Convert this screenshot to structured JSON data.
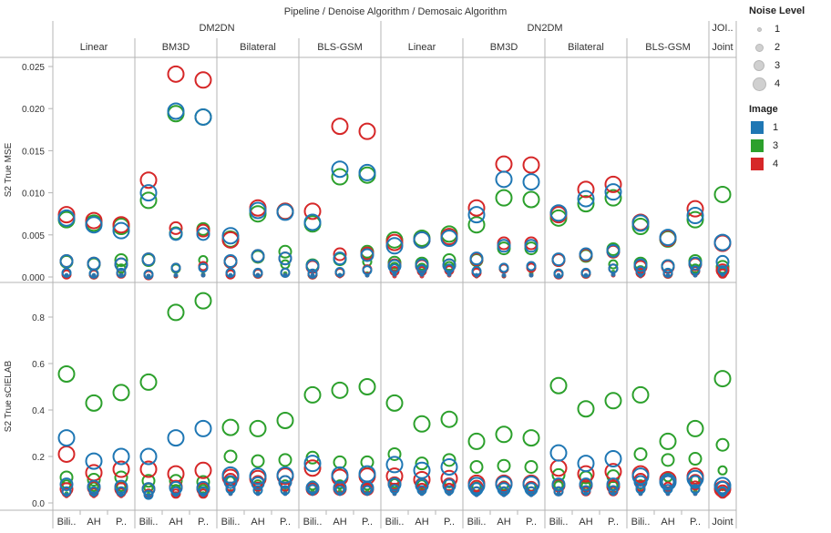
{
  "chart_data": {
    "type": "scatter",
    "title": "Pipeline / Denoise Algorithm / Demosaic Algorithm",
    "pipelines": [
      {
        "name": "DM2DN",
        "denoise": [
          "Linear",
          "BM3D",
          "Bilateral",
          "BLS-GSM"
        ]
      },
      {
        "name": "DN2DM",
        "denoise": [
          "Linear",
          "BM3D",
          "Bilateral",
          "BLS-GSM"
        ]
      },
      {
        "name": "JOI..",
        "denoise": [
          "Joint"
        ]
      }
    ],
    "demosaic_labels": [
      "Bili..",
      "AH",
      "P.."
    ],
    "joint_label": "Joint",
    "rows": [
      {
        "ylabel": "S2 True MSE",
        "ylim": [
          0,
          0.026
        ],
        "ticks": [
          "0.000",
          "0.005",
          "0.010",
          "0.015",
          "0.020",
          "0.025"
        ],
        "tick_values": [
          0,
          0.005,
          0.01,
          0.015,
          0.02,
          0.025
        ]
      },
      {
        "ylabel": "S2 True sCIELAB",
        "ylim": [
          0,
          0.92
        ],
        "ticks": [
          "0.0",
          "0.2",
          "0.4",
          "0.6",
          "0.8"
        ],
        "tick_values": [
          0,
          0.2,
          0.4,
          0.6,
          0.8
        ]
      }
    ],
    "legend": {
      "size_title": "Noise Level",
      "size_levels": [
        "1",
        "2",
        "3",
        "4"
      ],
      "color_title": "Image",
      "color_items": [
        {
          "label": "1",
          "color": "#1f77b4"
        },
        {
          "label": "3",
          "color": "#2ca02c"
        },
        {
          "label": "4",
          "color": "#d62728"
        }
      ]
    },
    "images": [
      "1",
      "3",
      "4"
    ],
    "noise_levels": [
      1,
      2,
      3,
      4
    ],
    "mse": {
      "DM2DN|Linear": {
        "Bili..": {
          "1": [
            0.0002,
            0.0005,
            0.0019,
            0.007
          ],
          "3": [
            0.0001,
            0.0004,
            0.0018,
            0.0068
          ],
          "4": [
            0.0001,
            0.0003,
            0.0019,
            0.0074
          ]
        },
        "AH": {
          "1": [
            0.0002,
            0.0004,
            0.0016,
            0.0062
          ],
          "3": [
            0.0001,
            0.0003,
            0.0015,
            0.0064
          ],
          "4": [
            0.0001,
            0.0003,
            0.0016,
            0.0067
          ]
        },
        "P..": {
          "1": [
            0.0002,
            0.0005,
            0.0015,
            0.0055
          ],
          "3": [
            0.0004,
            0.001,
            0.002,
            0.006
          ],
          "4": [
            0.0002,
            0.0004,
            0.0015,
            0.0062
          ]
        }
      },
      "DM2DN|BM3D": {
        "Bili..": {
          "1": [
            0.0001,
            0.0003,
            0.0021,
            0.01
          ],
          "3": [
            0.0001,
            0.0003,
            0.002,
            0.0091
          ],
          "4": [
            0.0001,
            0.0002,
            0.0021,
            0.0115
          ]
        },
        "AH": {
          "1": [
            0.0002,
            0.0011,
            0.0051,
            0.0197
          ],
          "3": [
            0.0001,
            0.001,
            0.0052,
            0.0194
          ],
          "4": [
            0.0001,
            0.0011,
            0.0058,
            0.0241
          ]
        },
        "P..": {
          "1": [
            0.0002,
            0.0011,
            0.0051,
            0.019
          ],
          "3": [
            0.0003,
            0.002,
            0.0057,
            0.019
          ],
          "4": [
            0.0002,
            0.0013,
            0.0055,
            0.0234
          ]
        }
      },
      "DM2DN|Bilateral": {
        "Bili..": {
          "1": [
            0.0002,
            0.0005,
            0.0019,
            0.0049
          ],
          "3": [
            0.0001,
            0.0004,
            0.0018,
            0.0045
          ],
          "4": [
            0.0001,
            0.0003,
            0.0018,
            0.0044
          ]
        },
        "AH": {
          "1": [
            0.0002,
            0.0005,
            0.0025,
            0.0079
          ],
          "3": [
            0.0002,
            0.0004,
            0.0024,
            0.0075
          ],
          "4": [
            0.0002,
            0.0004,
            0.0025,
            0.0082
          ]
        },
        "P..": {
          "1": [
            0.0002,
            0.0005,
            0.0022,
            0.0077
          ],
          "3": [
            0.0004,
            0.0015,
            0.003,
            0.0078
          ],
          "4": [
            0.0002,
            0.0005,
            0.0022,
            0.0078
          ]
        }
      },
      "DM2DN|BLS-GSM": {
        "Bili..": {
          "1": [
            0.0002,
            0.0004,
            0.0013,
            0.0065
          ],
          "3": [
            0.0001,
            0.0003,
            0.0014,
            0.0063
          ],
          "4": [
            0.0001,
            0.0003,
            0.0012,
            0.0078
          ]
        },
        "AH": {
          "1": [
            0.0002,
            0.0006,
            0.0022,
            0.0128
          ],
          "3": [
            0.0002,
            0.0005,
            0.0021,
            0.0119
          ],
          "4": [
            0.0001,
            0.0005,
            0.0027,
            0.0179
          ]
        },
        "P..": {
          "1": [
            0.0002,
            0.0008,
            0.0026,
            0.0124
          ],
          "3": [
            0.0004,
            0.0018,
            0.003,
            0.0121
          ],
          "4": [
            0.0002,
            0.0009,
            0.0028,
            0.0173
          ]
        }
      },
      "DN2DM|Linear": {
        "Bili..": {
          "1": [
            0.0003,
            0.001,
            0.0013,
            0.0037
          ],
          "3": [
            0.0006,
            0.0012,
            0.0017,
            0.0044
          ],
          "4": [
            0.0001,
            0.0007,
            0.0014,
            0.0041
          ]
        },
        "AH": {
          "1": [
            0.0003,
            0.0009,
            0.0014,
            0.0044
          ],
          "3": [
            0.0005,
            0.0011,
            0.0016,
            0.0046
          ],
          "4": [
            0.0001,
            0.0007,
            0.0013,
            0.0044
          ]
        },
        "P..": {
          "1": [
            0.0003,
            0.001,
            0.0014,
            0.0046
          ],
          "3": [
            0.0007,
            0.0013,
            0.002,
            0.0051
          ],
          "4": [
            0.0002,
            0.0008,
            0.0014,
            0.0048
          ]
        }
      },
      "DN2DM|BM3D": {
        "Bili..": {
          "1": [
            0.0002,
            0.0007,
            0.0022,
            0.0074
          ],
          "3": [
            0.0001,
            0.0006,
            0.002,
            0.0062
          ],
          "4": [
            0.0001,
            0.0005,
            0.0021,
            0.0082
          ]
        },
        "AH": {
          "1": [
            0.0002,
            0.0011,
            0.0037,
            0.0116
          ],
          "3": [
            0.0001,
            0.001,
            0.0034,
            0.0094
          ],
          "4": [
            0.0001,
            0.001,
            0.004,
            0.0134
          ]
        },
        "P..": {
          "1": [
            0.0002,
            0.0013,
            0.0037,
            0.0113
          ],
          "3": [
            0.0004,
            0.0012,
            0.0034,
            0.0092
          ],
          "4": [
            0.0002,
            0.0011,
            0.004,
            0.0133
          ]
        }
      },
      "DN2DM|Bilateral": {
        "Bili..": {
          "1": [
            0.0002,
            0.0004,
            0.0021,
            0.0076
          ],
          "3": [
            0.0001,
            0.0004,
            0.002,
            0.007
          ],
          "4": [
            0.0001,
            0.0003,
            0.002,
            0.0074
          ]
        },
        "AH": {
          "1": [
            0.0002,
            0.0005,
            0.0027,
            0.0093
          ],
          "3": [
            0.0001,
            0.0004,
            0.0025,
            0.0087
          ],
          "4": [
            0.0001,
            0.0004,
            0.0026,
            0.0104
          ]
        },
        "P..": {
          "1": [
            0.0003,
            0.001,
            0.0031,
            0.0101
          ],
          "3": [
            0.0006,
            0.0015,
            0.0033,
            0.0094
          ],
          "4": [
            0.0002,
            0.001,
            0.003,
            0.011
          ]
        }
      },
      "DN2DM|BLS-GSM": {
        "Bili..": {
          "1": [
            0.0002,
            0.0007,
            0.0014,
            0.0064
          ],
          "3": [
            0.0002,
            0.0008,
            0.0016,
            0.006
          ],
          "4": [
            0.0001,
            0.0005,
            0.0012,
            0.0065
          ]
        },
        "AH": {
          "1": [
            0.0002,
            0.0005,
            0.0013,
            0.0047
          ],
          "3": [
            0.0001,
            0.0004,
            0.0013,
            0.0045
          ],
          "4": [
            0.0001,
            0.0004,
            0.0012,
            0.0046
          ]
        },
        "P..": {
          "1": [
            0.0002,
            0.0008,
            0.0016,
            0.0073
          ],
          "3": [
            0.0004,
            0.001,
            0.0019,
            0.0068
          ],
          "4": [
            0.0002,
            0.0007,
            0.0015,
            0.0081
          ]
        }
      },
      "JOI..|Joint": {
        "Joint": {
          "1": [
            0.0003,
            0.0008,
            0.0018,
            0.0041
          ],
          "3": [
            0.0002,
            0.0006,
            0.0012,
            0.0098
          ],
          "4": [
            0.0001,
            0.0004,
            0.0008,
            0.004
          ]
        }
      }
    },
    "scielab": {
      "DM2DN|Linear": {
        "Bili..": {
          "1": [
            0.035,
            0.05,
            0.08,
            0.28
          ],
          "3": [
            0.04,
            0.08,
            0.11,
            0.555
          ],
          "4": [
            0.03,
            0.045,
            0.06,
            0.21
          ]
        },
        "AH": {
          "1": [
            0.035,
            0.05,
            0.07,
            0.18
          ],
          "3": [
            0.04,
            0.07,
            0.1,
            0.43
          ],
          "4": [
            0.03,
            0.045,
            0.065,
            0.13
          ]
        },
        "P..": {
          "1": [
            0.035,
            0.05,
            0.07,
            0.2
          ],
          "3": [
            0.04,
            0.07,
            0.11,
            0.475
          ],
          "4": [
            0.03,
            0.045,
            0.06,
            0.145
          ]
        }
      },
      "DM2DN|BM3D": {
        "Bili..": {
          "1": [
            0.03,
            0.035,
            0.06,
            0.2
          ],
          "3": [
            0.035,
            0.065,
            0.095,
            0.52
          ],
          "4": [
            0.03,
            0.04,
            0.06,
            0.145
          ]
        },
        "AH": {
          "1": [
            0.035,
            0.05,
            0.065,
            0.28
          ],
          "3": [
            0.04,
            0.06,
            0.095,
            0.82
          ],
          "4": [
            0.03,
            0.04,
            0.07,
            0.125
          ]
        },
        "P..": {
          "1": [
            0.035,
            0.05,
            0.065,
            0.32
          ],
          "3": [
            0.04,
            0.06,
            0.09,
            0.87
          ],
          "4": [
            0.03,
            0.04,
            0.06,
            0.14
          ]
        }
      },
      "DM2DN|Bilateral": {
        "Bili..": {
          "1": [
            0.04,
            0.06,
            0.09,
            0.12
          ],
          "3": [
            0.05,
            0.095,
            0.2,
            0.325
          ],
          "4": [
            0.04,
            0.07,
            0.1,
            0.11
          ]
        },
        "AH": {
          "1": [
            0.04,
            0.055,
            0.085,
            0.115
          ],
          "3": [
            0.05,
            0.08,
            0.18,
            0.32
          ],
          "4": [
            0.04,
            0.07,
            0.09,
            0.105
          ]
        },
        "P..": {
          "1": [
            0.04,
            0.055,
            0.09,
            0.12
          ],
          "3": [
            0.05,
            0.08,
            0.185,
            0.355
          ],
          "4": [
            0.04,
            0.07,
            0.09,
            0.115
          ]
        }
      },
      "DM2DN|BLS-GSM": {
        "Bili..": {
          "1": [
            0.04,
            0.06,
            0.065,
            0.17
          ],
          "3": [
            0.05,
            0.075,
            0.195,
            0.465
          ],
          "4": [
            0.04,
            0.06,
            0.06,
            0.15
          ]
        },
        "AH": {
          "1": [
            0.04,
            0.055,
            0.065,
            0.12
          ],
          "3": [
            0.05,
            0.08,
            0.175,
            0.485
          ],
          "4": [
            0.04,
            0.06,
            0.06,
            0.11
          ]
        },
        "P..": {
          "1": [
            0.04,
            0.055,
            0.065,
            0.125
          ],
          "3": [
            0.05,
            0.075,
            0.175,
            0.5
          ],
          "4": [
            0.04,
            0.06,
            0.06,
            0.115
          ]
        }
      },
      "DN2DM|Linear": {
        "Bili..": {
          "1": [
            0.04,
            0.06,
            0.08,
            0.165
          ],
          "3": [
            0.05,
            0.085,
            0.21,
            0.43
          ],
          "4": [
            0.04,
            0.065,
            0.085,
            0.115
          ]
        },
        "AH": {
          "1": [
            0.04,
            0.055,
            0.075,
            0.14
          ],
          "3": [
            0.05,
            0.08,
            0.17,
            0.34
          ],
          "4": [
            0.04,
            0.065,
            0.08,
            0.1
          ]
        },
        "P..": {
          "1": [
            0.04,
            0.055,
            0.075,
            0.155
          ],
          "3": [
            0.05,
            0.085,
            0.185,
            0.36
          ],
          "4": [
            0.04,
            0.065,
            0.08,
            0.105
          ]
        }
      },
      "DN2DM|BM3D": {
        "Bili..": {
          "1": [
            0.035,
            0.05,
            0.06,
            0.075
          ],
          "3": [
            0.04,
            0.07,
            0.155,
            0.265
          ],
          "4": [
            0.035,
            0.05,
            0.07,
            0.085
          ]
        },
        "AH": {
          "1": [
            0.035,
            0.05,
            0.06,
            0.08
          ],
          "3": [
            0.04,
            0.075,
            0.16,
            0.295
          ],
          "4": [
            0.035,
            0.05,
            0.065,
            0.085
          ]
        },
        "P..": {
          "1": [
            0.035,
            0.05,
            0.06,
            0.08
          ],
          "3": [
            0.04,
            0.07,
            0.155,
            0.28
          ],
          "4": [
            0.035,
            0.05,
            0.065,
            0.085
          ]
        }
      },
      "DN2DM|Bilateral": {
        "Bili..": {
          "1": [
            0.04,
            0.05,
            0.08,
            0.215
          ],
          "3": [
            0.05,
            0.075,
            0.12,
            0.505
          ],
          "4": [
            0.04,
            0.05,
            0.075,
            0.15
          ]
        },
        "AH": {
          "1": [
            0.04,
            0.055,
            0.08,
            0.17
          ],
          "3": [
            0.05,
            0.075,
            0.11,
            0.405
          ],
          "4": [
            0.04,
            0.05,
            0.075,
            0.125
          ]
        },
        "P..": {
          "1": [
            0.04,
            0.055,
            0.08,
            0.19
          ],
          "3": [
            0.05,
            0.075,
            0.115,
            0.44
          ],
          "4": [
            0.04,
            0.05,
            0.07,
            0.135
          ]
        }
      },
      "DN2DM|BLS-GSM": {
        "Bili..": {
          "1": [
            0.04,
            0.06,
            0.09,
            0.115
          ],
          "3": [
            0.05,
            0.08,
            0.21,
            0.465
          ],
          "4": [
            0.04,
            0.07,
            0.1,
            0.125
          ]
        },
        "AH": {
          "1": [
            0.04,
            0.06,
            0.09,
            0.09
          ],
          "3": [
            0.05,
            0.11,
            0.185,
            0.265
          ],
          "4": [
            0.04,
            0.07,
            0.09,
            0.1
          ]
        },
        "P..": {
          "1": [
            0.04,
            0.06,
            0.09,
            0.105
          ],
          "3": [
            0.05,
            0.1,
            0.19,
            0.32
          ],
          "4": [
            0.04,
            0.075,
            0.095,
            0.115
          ]
        }
      },
      "JOI..|Joint": {
        "Joint": {
          "1": [
            0.035,
            0.05,
            0.065,
            0.075
          ],
          "3": [
            0.06,
            0.14,
            0.25,
            0.535
          ],
          "4": [
            0.03,
            0.04,
            0.05,
            0.06
          ]
        }
      }
    }
  }
}
